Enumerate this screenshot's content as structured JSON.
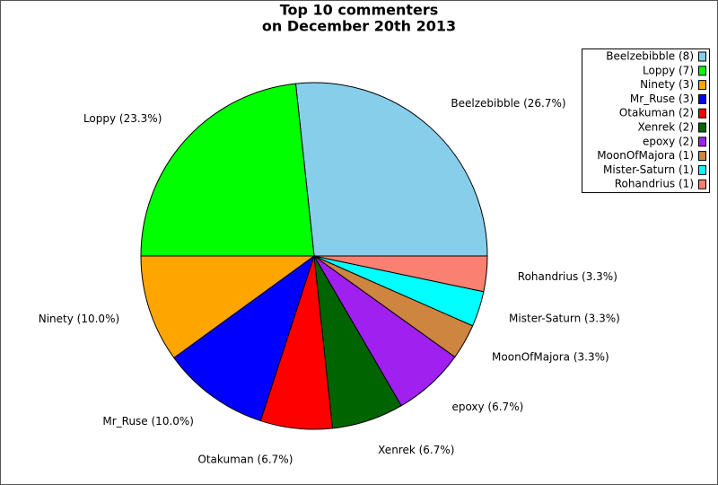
{
  "chart_data": {
    "type": "pie",
    "title_lines": [
      "Top 10 commenters",
      "on December 20th 2013"
    ],
    "categories": [
      "Beelzebibble (8)",
      "Loppy (7)",
      "Ninety (3)",
      "Mr_Ruse (3)",
      "Otakuman (2)",
      "Xenrek (2)",
      "epoxy (2)",
      "MoonOfMajora (1)",
      "Mister-Saturn (1)",
      "Rohandrius (1)"
    ],
    "values": [
      26.7,
      23.3,
      10.0,
      10.0,
      6.7,
      6.7,
      6.7,
      3.3,
      3.3,
      3.3
    ],
    "value_labels": [
      "Beelzebibble (26.7%)",
      "Loppy (23.3%)",
      "Ninety (10.0%)",
      "Mr_Ruse (10.0%)",
      "Otakuman (6.7%)",
      "Xenrek (6.7%)",
      "epoxy (6.7%)",
      "MoonOfMajora (3.3%)",
      "Mister-Saturn (3.3%)",
      "Rohandrius (3.3%)"
    ],
    "colors": [
      "#87ceeb",
      "#00ff00",
      "#ffa500",
      "#0000ff",
      "#ff0000",
      "#006400",
      "#a020f0",
      "#cd853f",
      "#00ffff",
      "#fa8072"
    ],
    "legend": "top-right"
  }
}
